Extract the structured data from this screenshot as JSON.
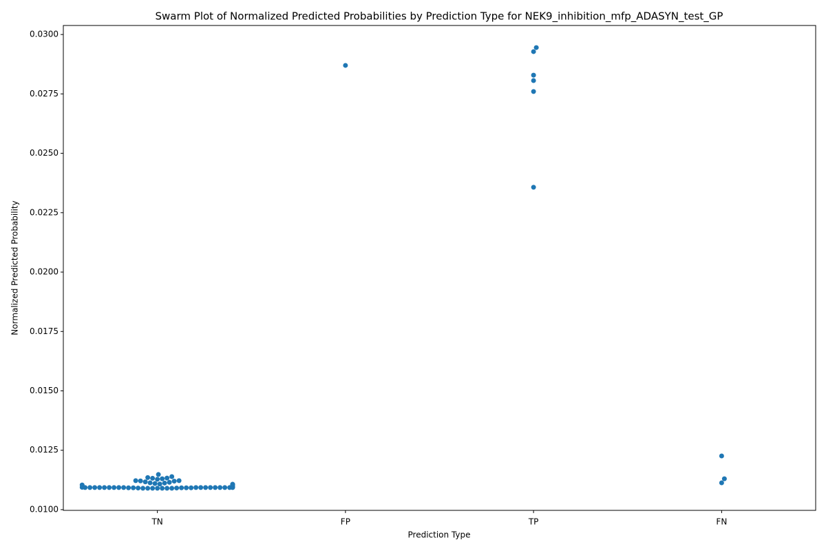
{
  "chart_data": {
    "type": "swarm",
    "title": "Swarm Plot of Normalized Predicted Probabilities by Prediction Type for NEK9_inhibition_mfp_ADASYN_test_GP",
    "x_label": "Prediction Type",
    "y_label": "Normalized Predicted Probability",
    "categories": [
      "TN",
      "FP",
      "TP",
      "FN"
    ],
    "values": [
      [
        0.01148,
        0.01139,
        0.01135,
        0.01133,
        0.01132,
        0.0113,
        0.01128,
        0.01122,
        0.01122,
        0.01121,
        0.0112,
        0.01117,
        0.01115,
        0.01113,
        0.01112,
        0.0111,
        0.01108,
        0.01107,
        0.01106,
        0.01105,
        0.01104,
        0.01102,
        0.01096,
        0.01096,
        0.01095,
        0.01095,
        0.01094,
        0.01094,
        0.01093,
        0.01093,
        0.01093,
        0.01093,
        0.01093,
        0.01093,
        0.01093,
        0.01093,
        0.01093,
        0.01093,
        0.01093,
        0.01093,
        0.01093,
        0.01093,
        0.01093,
        0.01093,
        0.01093,
        0.01093,
        0.01092,
        0.01092,
        0.01092,
        0.01092,
        0.01092,
        0.01091,
        0.01091,
        0.0109,
        0.0109,
        0.0109,
        0.0109,
        0.0109,
        0.0109,
        0.0109
      ],
      [
        0.0287
      ],
      [
        0.02945,
        0.02928,
        0.02829,
        0.02806,
        0.0276,
        0.02357
      ],
      [
        0.01226,
        0.0113,
        0.01113
      ]
    ],
    "color": "#1f77b4",
    "ylim": [
      0.00997,
      0.03038
    ],
    "yticks": [
      {
        "value": 0.01,
        "label": "0.0100"
      },
      {
        "value": 0.0125,
        "label": "0.0125"
      },
      {
        "value": 0.015,
        "label": "0.0150"
      },
      {
        "value": 0.0175,
        "label": "0.0175"
      },
      {
        "value": 0.02,
        "label": "0.0200"
      },
      {
        "value": 0.0225,
        "label": "0.0225"
      },
      {
        "value": 0.025,
        "label": "0.0250"
      },
      {
        "value": 0.0275,
        "label": "0.0275"
      },
      {
        "value": 0.03,
        "label": "0.0300"
      }
    ]
  }
}
